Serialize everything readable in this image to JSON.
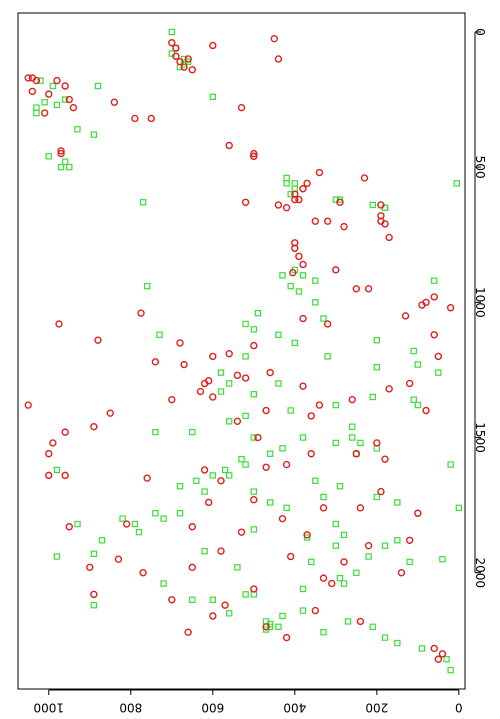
{
  "chart_data": {
    "type": "scatter",
    "title": "",
    "xlabel": "",
    "ylabel": "",
    "orientation": "rotated 90 degrees clockwise (x axis runs top-to-bottom on the right edge, y axis runs right-to-left along the bottom edge)",
    "xlim": [
      -70,
      2430
    ],
    "ylim": [
      -15,
      1075
    ],
    "x_ticks": [
      0,
      500,
      1000,
      1500,
      2000
    ],
    "x_tick_labels": [
      "0",
      "500",
      "1000",
      "1500",
      "2000"
    ],
    "y_ticks": [
      0,
      200,
      400,
      600,
      800,
      1000
    ],
    "y_tick_labels": [
      "0",
      "200",
      "400",
      "600",
      "800",
      "1000"
    ],
    "grid": false,
    "legend": "none",
    "series": [
      {
        "marker": "circle",
        "color": "#e0201c",
        "points": [
          [
            40,
            700
          ],
          [
            60,
            690
          ],
          [
            90,
            690
          ],
          [
            110,
            680
          ],
          [
            130,
            670
          ],
          [
            100,
            660
          ],
          [
            140,
            650
          ],
          [
            50,
            600
          ],
          [
            25,
            450
          ],
          [
            100,
            440
          ],
          [
            170,
            1050
          ],
          [
            170,
            1040
          ],
          [
            250,
            950
          ],
          [
            300,
            1010
          ],
          [
            320,
            790
          ],
          [
            440,
            970
          ],
          [
            450,
            970
          ],
          [
            450,
            500
          ],
          [
            460,
            500
          ],
          [
            460,
            500
          ],
          [
            260,
            840
          ],
          [
            220,
            1040
          ],
          [
            180,
            1030
          ],
          [
            280,
            530
          ],
          [
            520,
            340
          ],
          [
            560,
            370
          ],
          [
            580,
            380
          ],
          [
            600,
            400
          ],
          [
            620,
            390
          ],
          [
            640,
            440
          ],
          [
            650,
            420
          ],
          [
            630,
            520
          ],
          [
            630,
            290
          ],
          [
            680,
            190
          ],
          [
            700,
            190
          ],
          [
            710,
            180
          ],
          [
            980,
            60
          ],
          [
            1000,
            80
          ],
          [
            1010,
            90
          ],
          [
            950,
            250
          ],
          [
            890,
            405
          ],
          [
            860,
            380
          ],
          [
            830,
            390
          ],
          [
            780,
            400
          ],
          [
            720,
            280
          ],
          [
            700,
            320
          ],
          [
            640,
            190
          ],
          [
            1060,
            380
          ],
          [
            1040,
            775
          ],
          [
            1080,
            975
          ],
          [
            1140,
            880
          ],
          [
            1160,
            500
          ],
          [
            1200,
            600
          ],
          [
            1220,
            740
          ],
          [
            1260,
            460
          ],
          [
            1270,
            540
          ],
          [
            1290,
            610
          ],
          [
            1300,
            620
          ],
          [
            1310,
            380
          ],
          [
            1330,
            630
          ],
          [
            1350,
            600
          ],
          [
            1380,
            1050
          ],
          [
            1360,
            260
          ],
          [
            1380,
            340
          ],
          [
            1400,
            470
          ],
          [
            1420,
            360
          ],
          [
            1440,
            540
          ],
          [
            1460,
            890
          ],
          [
            1500,
            490
          ],
          [
            1520,
            200
          ],
          [
            1560,
            250
          ],
          [
            1560,
            360
          ],
          [
            1580,
            180
          ],
          [
            1600,
            420
          ],
          [
            1610,
            470
          ],
          [
            1620,
            620
          ],
          [
            1640,
            1000
          ],
          [
            1650,
            760
          ],
          [
            1660,
            580
          ],
          [
            1700,
            190
          ],
          [
            1730,
            500
          ],
          [
            1740,
            610
          ],
          [
            1760,
            240
          ],
          [
            1760,
            330
          ],
          [
            1780,
            100
          ],
          [
            1800,
            430
          ],
          [
            1820,
            810
          ],
          [
            1830,
            650
          ],
          [
            1850,
            530
          ],
          [
            1860,
            370
          ],
          [
            1880,
            120
          ],
          [
            1900,
            220
          ],
          [
            1920,
            580
          ],
          [
            1940,
            410
          ],
          [
            1960,
            280
          ],
          [
            1980,
            650
          ],
          [
            2000,
            140
          ],
          [
            2020,
            330
          ],
          [
            2040,
            310
          ],
          [
            2060,
            500
          ],
          [
            2080,
            890
          ],
          [
            2100,
            700
          ],
          [
            2120,
            570
          ],
          [
            2140,
            350
          ],
          [
            2160,
            600
          ],
          [
            2180,
            240
          ],
          [
            2200,
            470
          ],
          [
            2220,
            660
          ],
          [
            2240,
            420
          ],
          [
            2280,
            60
          ],
          [
            2300,
            40
          ],
          [
            2320,
            50
          ],
          [
            2000,
            770
          ],
          [
            1950,
            830
          ],
          [
            1980,
            900
          ],
          [
            1830,
            950
          ],
          [
            1640,
            960
          ],
          [
            1560,
            1000
          ],
          [
            1520,
            990
          ],
          [
            1480,
            960
          ],
          [
            1410,
            850
          ],
          [
            1360,
            700
          ],
          [
            1280,
            520
          ],
          [
            1230,
            670
          ],
          [
            1190,
            560
          ],
          [
            1150,
            680
          ],
          [
            1080,
            320
          ],
          [
            950,
            220
          ],
          [
            880,
            300
          ],
          [
            800,
            400
          ],
          [
            760,
            170
          ],
          [
            700,
            350
          ],
          [
            620,
            400
          ],
          [
            540,
            230
          ],
          [
            420,
            560
          ],
          [
            320,
            750
          ],
          [
            280,
            940
          ],
          [
            230,
            1000
          ],
          [
            200,
            960
          ],
          [
            180,
            980
          ],
          [
            1400,
            80
          ],
          [
            1320,
            170
          ],
          [
            1300,
            120
          ],
          [
            1200,
            50
          ],
          [
            1120,
            60
          ],
          [
            1050,
            130
          ],
          [
            1020,
            20
          ]
        ]
      },
      {
        "marker": "square",
        "color": "#3cdc3c",
        "points": [
          [
            0,
            700
          ],
          [
            60,
            690
          ],
          [
            100,
            670
          ],
          [
            110,
            660
          ],
          [
            130,
            680
          ],
          [
            240,
            600
          ],
          [
            180,
            1020
          ],
          [
            200,
            990
          ],
          [
            260,
            1010
          ],
          [
            280,
            1030
          ],
          [
            250,
            960
          ],
          [
            360,
            930
          ],
          [
            500,
            970
          ],
          [
            480,
            960
          ],
          [
            540,
            420
          ],
          [
            560,
            400
          ],
          [
            620,
            290
          ],
          [
            640,
            210
          ],
          [
            650,
            180
          ],
          [
            560,
            5
          ],
          [
            600,
            410
          ],
          [
            630,
            770
          ],
          [
            880,
            400
          ],
          [
            900,
            380
          ],
          [
            920,
            350
          ],
          [
            940,
            760
          ],
          [
            920,
            60
          ],
          [
            1040,
            490
          ],
          [
            1060,
            330
          ],
          [
            1100,
            500
          ],
          [
            1120,
            730
          ],
          [
            1140,
            200
          ],
          [
            1180,
            110
          ],
          [
            1200,
            520
          ],
          [
            1240,
            200
          ],
          [
            1260,
            580
          ],
          [
            1300,
            560
          ],
          [
            1330,
            580
          ],
          [
            1350,
            210
          ],
          [
            1360,
            110
          ],
          [
            1380,
            300
          ],
          [
            1400,
            410
          ],
          [
            1440,
            560
          ],
          [
            1480,
            740
          ],
          [
            1500,
            500
          ],
          [
            1520,
            240
          ],
          [
            1540,
            200
          ],
          [
            1560,
            250
          ],
          [
            1580,
            530
          ],
          [
            1600,
            20
          ],
          [
            1620,
            980
          ],
          [
            1640,
            600
          ],
          [
            1660,
            350
          ],
          [
            1680,
            680
          ],
          [
            1700,
            500
          ],
          [
            1720,
            200
          ],
          [
            1740,
            150
          ],
          [
            1760,
            0
          ],
          [
            1780,
            680
          ],
          [
            1800,
            720
          ],
          [
            1800,
            820
          ],
          [
            1820,
            790
          ],
          [
            1840,
            500
          ],
          [
            1860,
            280
          ],
          [
            1880,
            870
          ],
          [
            1900,
            300
          ],
          [
            1920,
            620
          ],
          [
            1940,
            980
          ],
          [
            1960,
            360
          ],
          [
            2000,
            250
          ],
          [
            2020,
            290
          ],
          [
            2040,
            280
          ],
          [
            2060,
            380
          ],
          [
            2080,
            500
          ],
          [
            2100,
            650
          ],
          [
            2120,
            890
          ],
          [
            2140,
            380
          ],
          [
            2160,
            430
          ],
          [
            2180,
            470
          ],
          [
            2190,
            460
          ],
          [
            2200,
            460
          ],
          [
            2200,
            440
          ],
          [
            2210,
            470
          ],
          [
            2220,
            330
          ],
          [
            2240,
            180
          ],
          [
            2260,
            150
          ],
          [
            2280,
            90
          ],
          [
            2320,
            30
          ],
          [
            2360,
            20
          ],
          [
            2200,
            210
          ],
          [
            2180,
            270
          ],
          [
            2150,
            560
          ],
          [
            2100,
            600
          ],
          [
            2080,
            520
          ],
          [
            2040,
            720
          ],
          [
            1980,
            540
          ],
          [
            1960,
            120
          ],
          [
            1950,
            40
          ],
          [
            1930,
            890
          ],
          [
            1900,
            180
          ],
          [
            1870,
            370
          ],
          [
            1850,
            780
          ],
          [
            1820,
            930
          ],
          [
            1780,
            740
          ],
          [
            1740,
            460
          ],
          [
            1700,
            620
          ],
          [
            1680,
            290
          ],
          [
            1620,
            570
          ],
          [
            1560,
            460
          ],
          [
            1520,
            300
          ],
          [
            1500,
            260
          ],
          [
            1480,
            650
          ],
          [
            1420,
            520
          ],
          [
            1380,
            100
          ],
          [
            1340,
            500
          ],
          [
            1300,
            440
          ],
          [
            1260,
            50
          ],
          [
            1230,
            100
          ],
          [
            1200,
            320
          ],
          [
            1150,
            400
          ],
          [
            1120,
            440
          ],
          [
            1080,
            520
          ],
          [
            1000,
            350
          ],
          [
            960,
            390
          ],
          [
            940,
            410
          ],
          [
            900,
            430
          ],
          [
            650,
            180
          ],
          [
            620,
            300
          ],
          [
            580,
            400
          ],
          [
            560,
            420
          ],
          [
            500,
            950
          ],
          [
            460,
            1000
          ],
          [
            380,
            890
          ],
          [
            300,
            1030
          ],
          [
            270,
            980
          ],
          [
            200,
            880
          ],
          [
            120,
            670
          ],
          [
            80,
            700
          ],
          [
            1940,
            220
          ],
          [
            1880,
            150
          ],
          [
            1820,
            300
          ],
          [
            1760,
            420
          ],
          [
            1720,
            330
          ],
          [
            1660,
            640
          ],
          [
            1640,
            560
          ],
          [
            1600,
            520
          ],
          [
            1540,
            430
          ],
          [
            1500,
            380
          ],
          [
            1460,
            260
          ]
        ]
      }
    ]
  }
}
